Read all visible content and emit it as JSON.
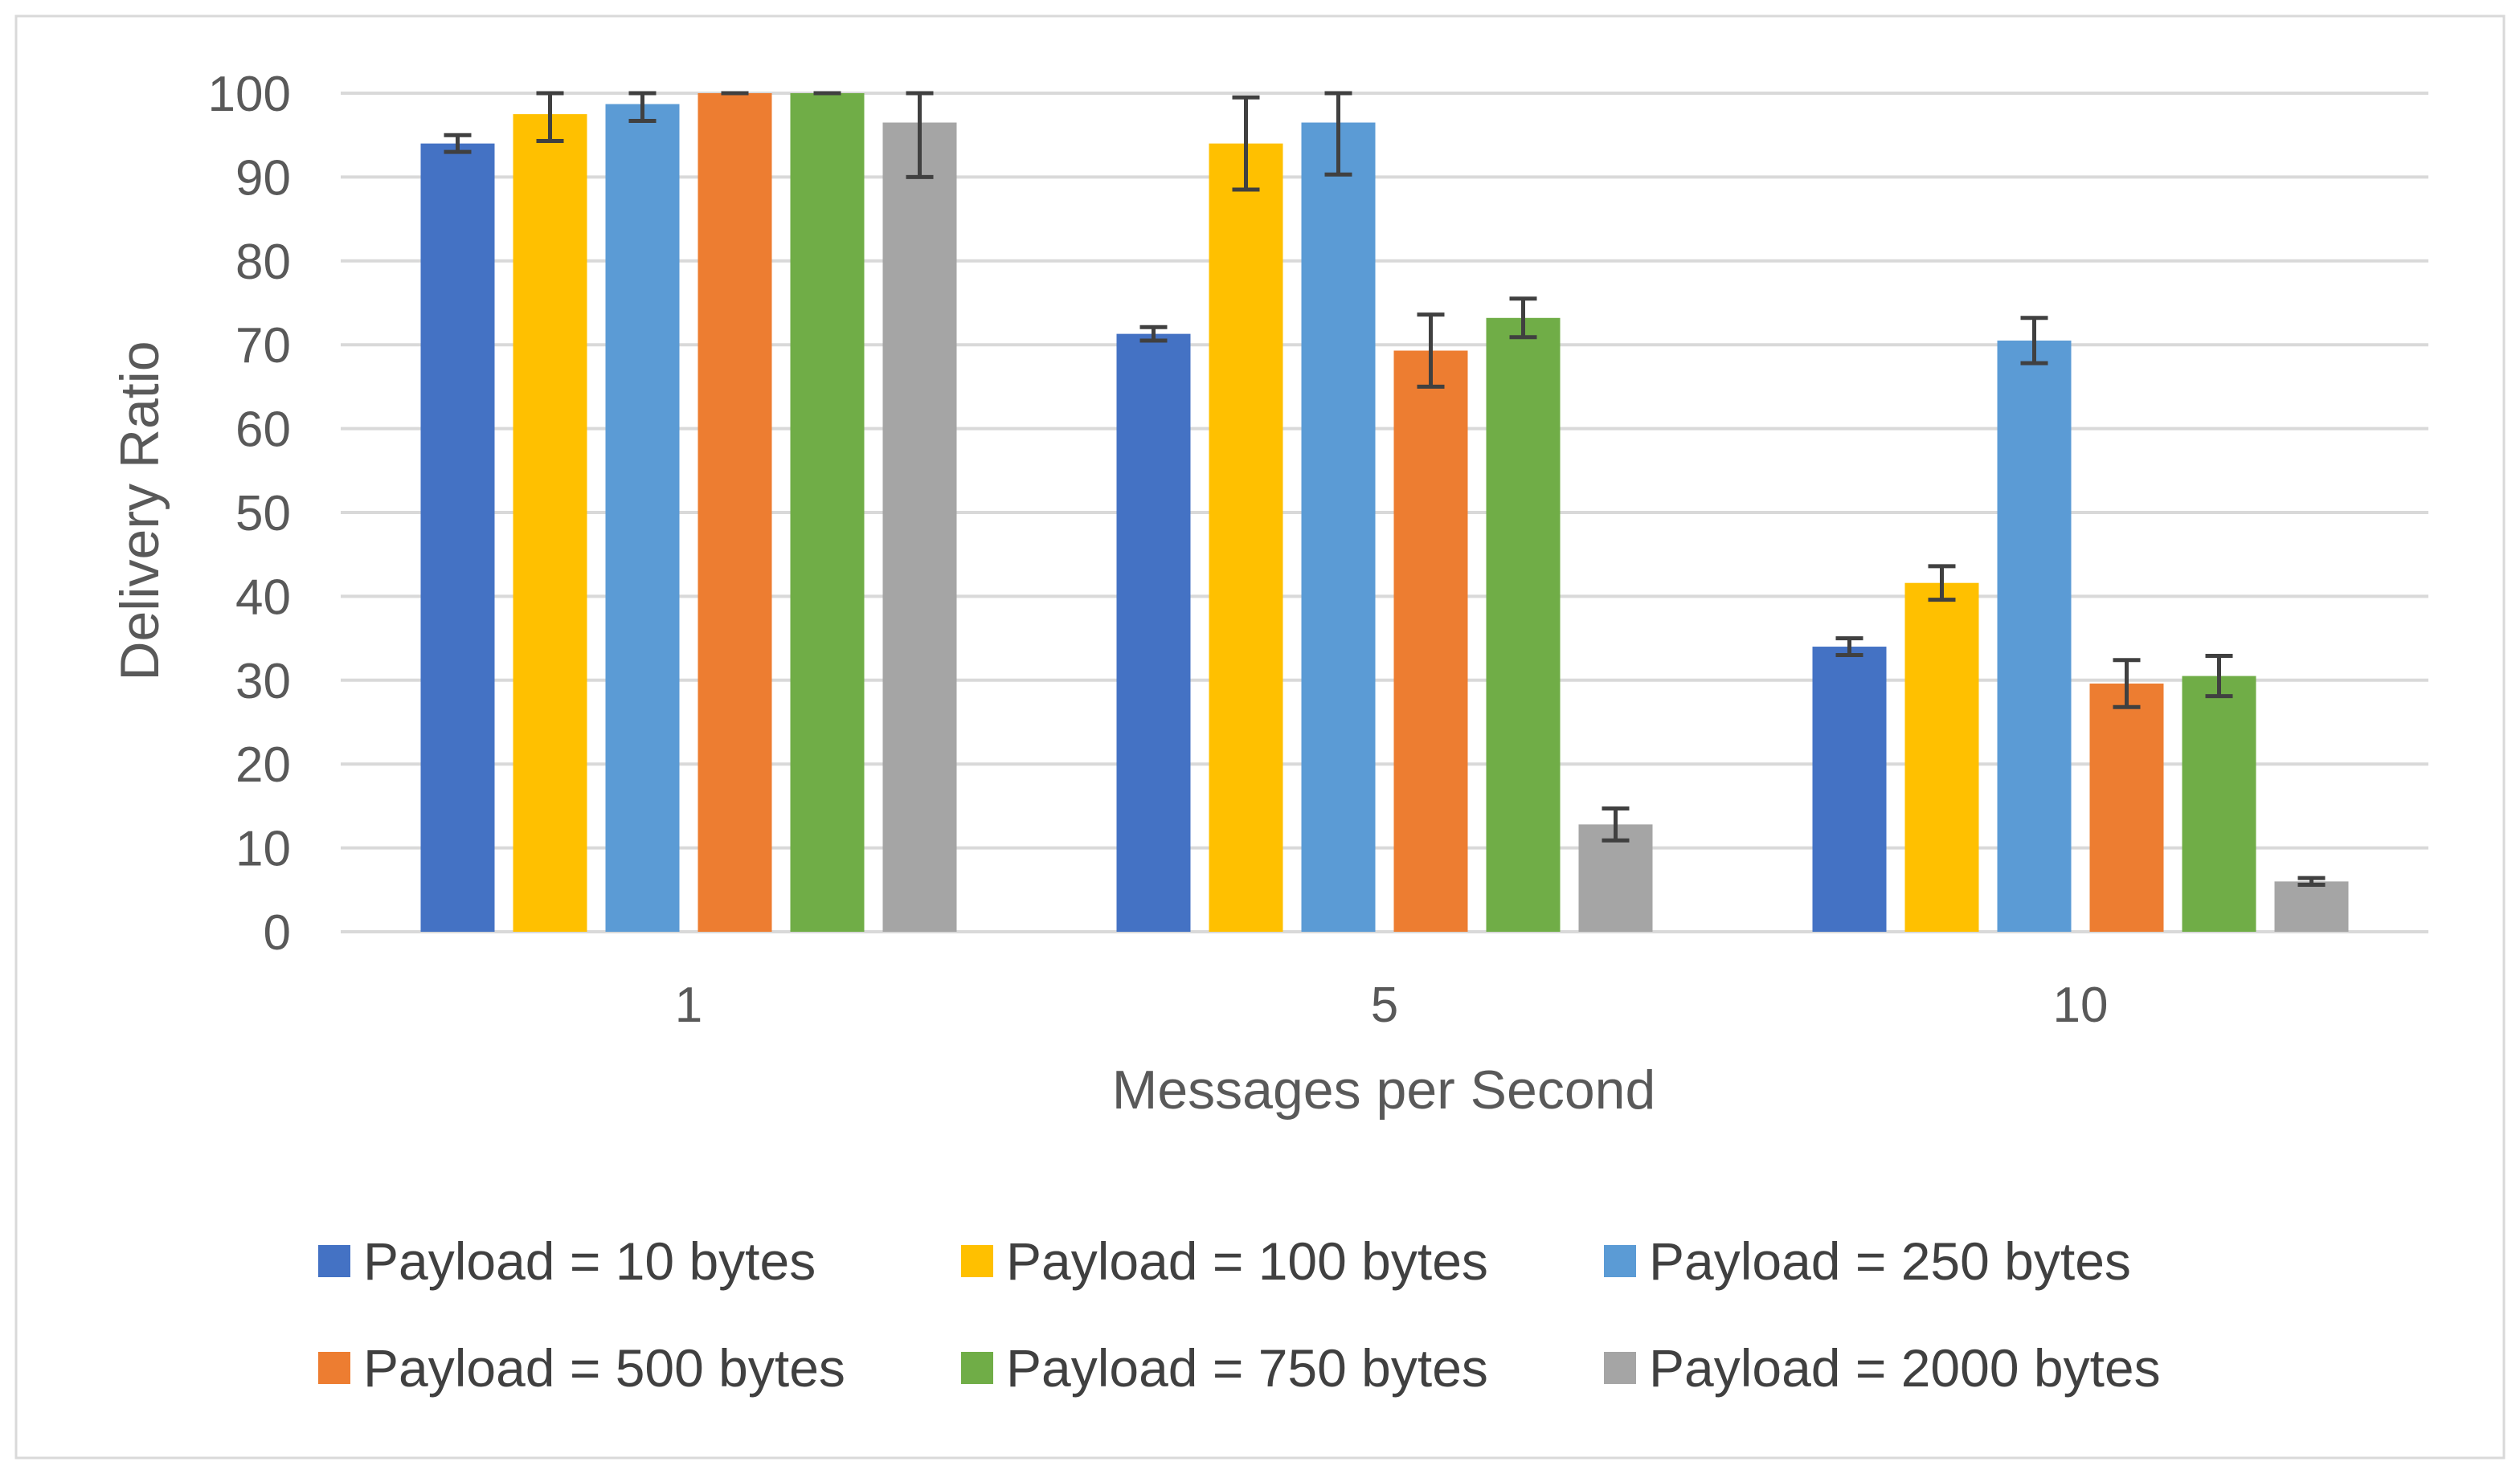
{
  "chart_data": {
    "type": "bar",
    "title": "",
    "xlabel": "Messages per Second",
    "ylabel": "Delivery Ratio",
    "categories": [
      "1",
      "5",
      "10"
    ],
    "ylim": [
      0,
      100
    ],
    "yticks": [
      "0",
      "10",
      "20",
      "30",
      "40",
      "50",
      "60",
      "70",
      "80",
      "90",
      "100"
    ],
    "grid": true,
    "legend_position": "bottom",
    "series": [
      {
        "name": "Payload = 10 bytes",
        "color": "#4472C4",
        "values": [
          94,
          71.3,
          34
        ],
        "error": [
          1.0,
          0.8,
          1.0
        ]
      },
      {
        "name": "Payload = 100 bytes",
        "color": "#FFC000",
        "values": [
          97.5,
          94,
          41.6
        ],
        "error": [
          3.2,
          5.5,
          2.0
        ]
      },
      {
        "name": "Payload = 250 bytes",
        "color": "#5B9BD5",
        "values": [
          98.7,
          96.5,
          70.5
        ],
        "error": [
          2.0,
          6.2,
          2.7
        ]
      },
      {
        "name": "Payload = 500 bytes",
        "color": "#ED7D31",
        "values": [
          100,
          69.3,
          29.6
        ],
        "error": [
          0.0,
          4.3,
          2.8
        ]
      },
      {
        "name": "Payload = 750 bytes",
        "color": "#70AD47",
        "values": [
          100,
          73.2,
          30.5
        ],
        "error": [
          0.0,
          2.3,
          2.4
        ]
      },
      {
        "name": "Payload = 2000 bytes",
        "color": "#A5A5A5",
        "values": [
          96.5,
          12.8,
          6.0
        ],
        "error": [
          6.5,
          1.9,
          0.4
        ]
      }
    ]
  }
}
